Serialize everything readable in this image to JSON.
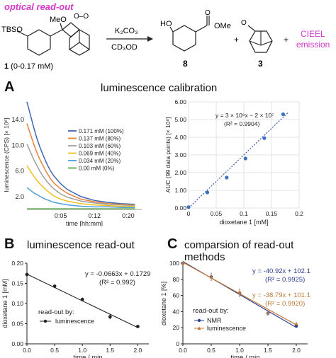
{
  "header": {
    "title": "optical read-out",
    "reagent_top": "K₂CO₃",
    "reagent_bottom": "CD₃OD",
    "compound1": {
      "number": "1",
      "conc": " (0-0.17 mM)"
    },
    "compound8": "8",
    "compound3": "3",
    "plus": "+",
    "emission_line1": "CIEEL",
    "emission_line2": "emission",
    "groups": {
      "tbso": "TBSO",
      "meo": "MeO",
      "ho": "HO",
      "ome": "OMe",
      "o_top": "O",
      "o_ketone": "O",
      "oo": "O–O"
    }
  },
  "colors": {
    "magenta": "#d438c8",
    "blue": "#3a5ba8",
    "brown": "#c07a3a"
  },
  "panelA": {
    "letter": "A",
    "title": "luminescence calibration"
  },
  "panelB": {
    "letter": "B",
    "title": "luminescence read-out"
  },
  "panelC": {
    "letter": "C",
    "title": "comparsion of read-out methods"
  },
  "chart_data": [
    {
      "type": "line",
      "id": "A-left",
      "ylabel": "luminescence (CPS) [× 10⁶]",
      "xlabel": "time [hh:mm]",
      "x_ticks": [
        "0:05",
        "0:12",
        "0:20"
      ],
      "y_ticks": [
        "2.0",
        "6.0",
        "10.0",
        "14.0"
      ],
      "x": [
        0,
        0.5,
        1,
        1.5,
        2,
        2.5,
        3,
        3.5,
        4,
        5,
        6,
        8,
        10,
        12,
        14,
        16
      ],
      "series": [
        {
          "name": "0.171 mM (100%)",
          "color": "#3f67b1",
          "values": [
            16.8,
            14.8,
            12.8,
            11.0,
            9.5,
            8.2,
            7.0,
            6.0,
            5.2,
            4.0,
            3.1,
            2.0,
            1.4,
            1.1,
            0.9,
            0.8
          ]
        },
        {
          "name": "0.137 mM (80%)",
          "color": "#e6823a",
          "values": [
            13.4,
            11.8,
            10.2,
            8.8,
            7.6,
            6.6,
            5.6,
            4.8,
            4.1,
            3.2,
            2.5,
            1.6,
            1.2,
            0.9,
            0.8,
            0.7
          ]
        },
        {
          "name": "0.103 mM (60%)",
          "color": "#9e9e9e",
          "values": [
            10.2,
            9.0,
            7.8,
            6.8,
            5.8,
            5.0,
            4.3,
            3.7,
            3.2,
            2.4,
            1.9,
            1.3,
            1.0,
            0.8,
            0.7,
            0.6
          ]
        },
        {
          "name": "0.069 mM (40%)",
          "color": "#f0c020",
          "values": [
            6.8,
            6.0,
            5.2,
            4.5,
            3.9,
            3.4,
            2.9,
            2.5,
            2.1,
            1.6,
            1.3,
            0.9,
            0.7,
            0.6,
            0.5,
            0.5
          ]
        },
        {
          "name": "0.034 mM (20%)",
          "color": "#4f9fd8",
          "values": [
            3.4,
            3.0,
            2.6,
            2.3,
            2.0,
            1.7,
            1.5,
            1.3,
            1.1,
            0.9,
            0.7,
            0.5,
            0.4,
            0.4,
            0.3,
            0.3
          ]
        },
        {
          "name": "0.00 mM (0%)",
          "color": "#5aa84a",
          "values": [
            0.1,
            0.1,
            0.1,
            0.1,
            0.1,
            0.1,
            0.1,
            0.1,
            0.1,
            0.1,
            0.1,
            0.1,
            0.1,
            0.1,
            0.1,
            0.1
          ]
        }
      ],
      "ylim": [
        0,
        17
      ],
      "legend": "center-right"
    },
    {
      "type": "scatter",
      "id": "A-right",
      "ylabel": "AUC (99 data points) [× 10⁸]",
      "xlabel": "dioxetane 1 [mM]",
      "xlabel_bold": "1",
      "x_ticks": [
        "0",
        "0.05",
        "0.1",
        "0.15",
        "0.2"
      ],
      "y_ticks": [
        "0.00",
        "1.00",
        "2.00",
        "3.00",
        "4.00",
        "5.00",
        "6.00"
      ],
      "x": [
        0,
        0.034,
        0.069,
        0.103,
        0.137,
        0.171
      ],
      "values": [
        0.05,
        0.88,
        1.72,
        2.8,
        3.95,
        5.3
      ],
      "xlim": [
        0,
        0.2
      ],
      "ylim": [
        0,
        6
      ],
      "annotation_line1": "y = 3 × 10⁹x − 2 × 10⁷",
      "annotation_line2": "(R² = 0.9904)",
      "grid": true,
      "trendline": "dotted"
    },
    {
      "type": "scatter",
      "id": "B",
      "ylabel": "dioxetane 1 [mM]",
      "xlabel": "time / min",
      "x_ticks": [
        "0.0",
        "0.5",
        "1.0",
        "1.5",
        "2.0"
      ],
      "y_ticks": [
        "0.00",
        "0.05",
        "0.10",
        "0.15",
        "0.20"
      ],
      "x": [
        0,
        0.5,
        1.0,
        1.5,
        2.0
      ],
      "values": [
        0.172,
        0.143,
        0.11,
        0.067,
        0.043
      ],
      "errors": [
        0.01,
        0.004,
        0.005,
        0.006,
        0.002
      ],
      "xlim": [
        0,
        2.2
      ],
      "ylim": [
        0,
        0.2
      ],
      "annotation_line1": "y = -0.0663x + 0.1729",
      "annotation_line2": "(R² = 0.992)",
      "legend_title": "read-out by:",
      "legend_entry": "luminescence"
    },
    {
      "type": "scatter",
      "id": "C",
      "ylabel": "dioxetane 1 [%]",
      "xlabel": "time / min",
      "x_ticks": [
        "0.0",
        "0.5",
        "1.0",
        "1.5",
        "2.0"
      ],
      "y_ticks": [
        "0",
        "20",
        "40",
        "60",
        "80",
        "100"
      ],
      "x": [
        0,
        0.5,
        1.0,
        1.5,
        2.0
      ],
      "series": [
        {
          "name": "NMR",
          "color": "#2a3f8f",
          "marker": "circle",
          "values": [
            100,
            83,
            63,
            38,
            22
          ],
          "errors": [
            2,
            5,
            5,
            3,
            2
          ],
          "fit_line1": "y = -40.92x + 102.1",
          "fit_line2": "(R² = 0.9925)"
        },
        {
          "name": "luminescence",
          "color": "#c07a3a",
          "marker": "triangle",
          "values": [
            100,
            83,
            64,
            39,
            25
          ],
          "errors": [
            2,
            4,
            5,
            3,
            2
          ],
          "fit_line1": "y = -38.79x + 101.1",
          "fit_line2": "(R² = 0.9920)"
        }
      ],
      "xlim": [
        0,
        2.2
      ],
      "ylim": [
        0,
        100
      ],
      "legend_title": "read-out by:"
    }
  ]
}
